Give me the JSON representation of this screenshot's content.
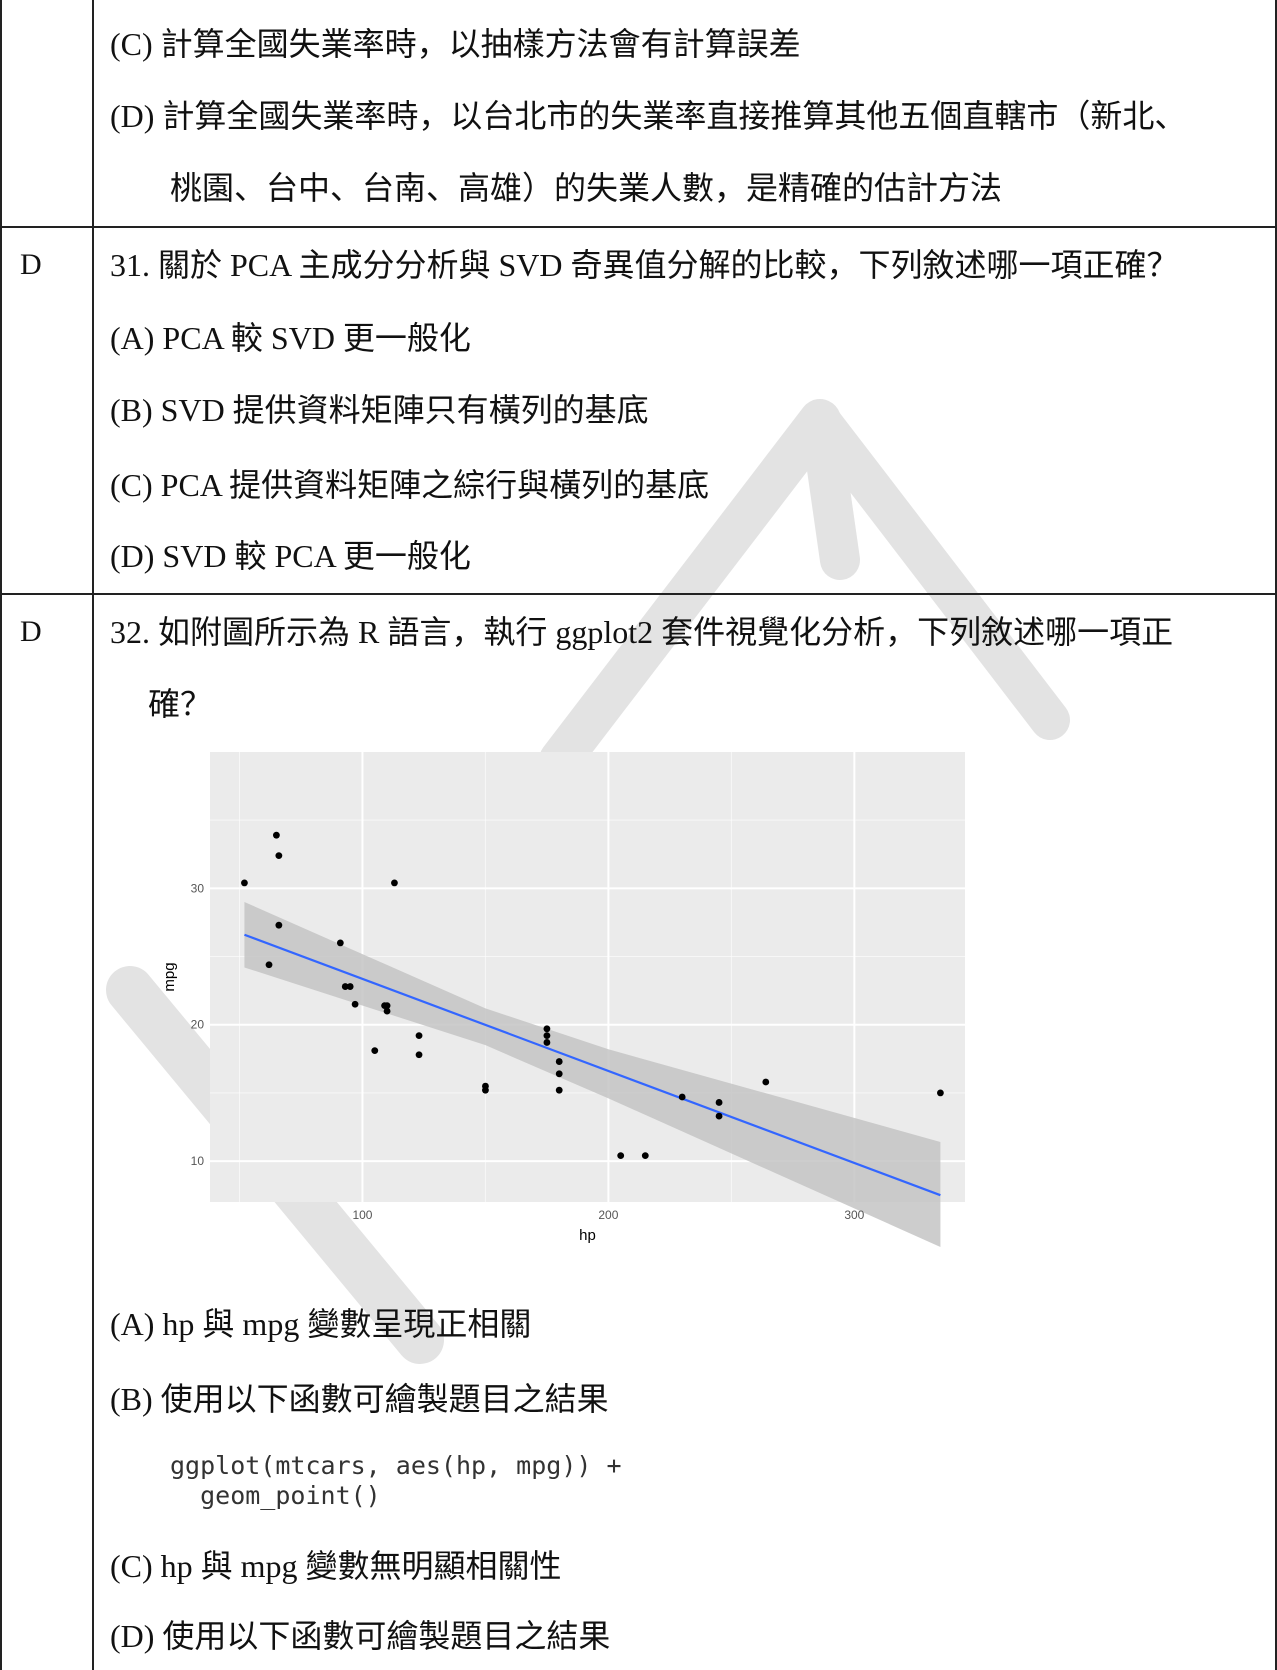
{
  "rows": [
    {
      "answer": "",
      "lines": [
        "(C) 計算全國失業率時，以抽樣方法會有計算誤差",
        "(D) 計算全國失業率時，以台北市的失業率直接推算其他五個直轄市（新北、",
        "桃園、台中、台南、高雄）的失業人數，是精確的估計方法"
      ]
    },
    {
      "answer": "D",
      "question": "31. 關於 PCA 主成分分析與 SVD 奇異值分解的比較，下列敘述哪一項正確？",
      "options": [
        "(A) PCA 較 SVD 更一般化",
        "(B) SVD 提供資料矩陣只有橫列的基底",
        "(C) PCA 提供資料矩陣之綜行與橫列的基底",
        "(D) SVD 較 PCA 更一般化"
      ]
    },
    {
      "answer": "D",
      "question_line1": "32. 如附圖所示為 R 語言，執行 ggplot2 套件視覺化分析，下列敘述哪一項正",
      "question_line2": "確？",
      "options": [
        "(A) hp 與 mpg 變數呈現正相關",
        "(B) 使用以下函數可繪製題目之結果",
        "(C) hp 與 mpg 變數無明顯相關性",
        "(D) 使用以下函數可繪製題目之結果"
      ],
      "code_line1": "ggplot(mtcars, aes(hp, mpg)) +",
      "code_line2": "  geom_point()"
    }
  ],
  "chart_data": {
    "type": "scatter",
    "xlabel": "hp",
    "ylabel": "mpg",
    "xlim": [
      38,
      345
    ],
    "ylim": [
      7,
      40
    ],
    "xticks": [
      100,
      200,
      300
    ],
    "yticks": [
      10,
      20,
      30
    ],
    "grid": true,
    "points": [
      [
        52,
        30.4
      ],
      [
        62,
        24.4
      ],
      [
        65,
        33.9
      ],
      [
        66,
        32.4
      ],
      [
        66,
        27.3
      ],
      [
        91,
        26.0
      ],
      [
        93,
        22.8
      ],
      [
        95,
        22.8
      ],
      [
        97,
        21.5
      ],
      [
        105,
        18.1
      ],
      [
        109,
        21.4
      ],
      [
        110,
        21.0
      ],
      [
        110,
        21.4
      ],
      [
        113,
        30.4
      ],
      [
        123,
        19.2
      ],
      [
        123,
        17.8
      ],
      [
        150,
        15.2
      ],
      [
        150,
        15.5
      ],
      [
        175,
        19.2
      ],
      [
        175,
        18.7
      ],
      [
        175,
        19.7
      ],
      [
        180,
        17.3
      ],
      [
        180,
        16.4
      ],
      [
        180,
        15.2
      ],
      [
        205,
        10.4
      ],
      [
        215,
        10.4
      ],
      [
        230,
        14.7
      ],
      [
        245,
        13.3
      ],
      [
        245,
        14.3
      ],
      [
        264,
        15.8
      ],
      [
        335,
        15.0
      ]
    ],
    "fit_line": [
      [
        52,
        26.6
      ],
      [
        335,
        7.5
      ]
    ],
    "confidence_band": {
      "x": [
        52,
        150,
        200,
        335
      ],
      "lower": [
        24.2,
        18.5,
        14.6,
        3.7
      ],
      "upper": [
        29.0,
        21.2,
        18.2,
        11.4
      ]
    },
    "colors": {
      "panel": "#ebebeb",
      "grid": "#ffffff",
      "band": "#c4c4c4",
      "line": "#3366ff",
      "point": "#000000"
    }
  }
}
